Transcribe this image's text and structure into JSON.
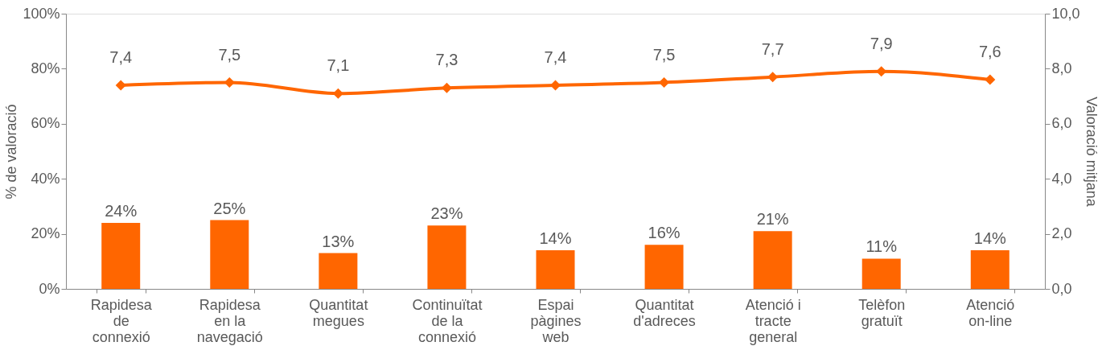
{
  "chart_data": {
    "type": "bar",
    "categories": [
      "Rapidesa de connexió",
      "Rapidesa en la navegació",
      "Quantitat megues",
      "Continuïtat de la connexió",
      "Espai pàgines web",
      "Quantitat d'adreces",
      "Atenció i tracte general",
      "Telèfon gratuït",
      "Atenció on-line"
    ],
    "ylabel": "% de valoració",
    "y2label": "Valoració mitjana",
    "ylim": [
      0,
      100
    ],
    "yticks": [
      {
        "value": 0,
        "label": "0%"
      },
      {
        "value": 20,
        "label": "20%"
      },
      {
        "value": 40,
        "label": "40%"
      },
      {
        "value": 60,
        "label": "60%"
      },
      {
        "value": 80,
        "label": "80%"
      },
      {
        "value": 100,
        "label": "100%"
      }
    ],
    "y2lim": [
      0,
      10
    ],
    "y2ticks": [
      {
        "value": 0,
        "label": "0,0"
      },
      {
        "value": 2,
        "label": "2,0"
      },
      {
        "value": 4,
        "label": "4,0"
      },
      {
        "value": 6,
        "label": "6,0"
      },
      {
        "value": 8,
        "label": "8,0"
      },
      {
        "value": 10,
        "label": "10,0"
      }
    ],
    "series": [
      {
        "color": "#ff6600",
        "values": [
          24,
          25,
          13,
          23,
          14,
          16,
          21,
          11,
          14
        ],
        "value_labels": [
          "24%",
          "25%",
          "13%",
          "23%",
          "14%",
          "16%",
          "21%",
          "11%",
          "14%"
        ]
      },
      {
        "type": "line",
        "axis": "y2",
        "color": "#ff6600",
        "marker": "diamond",
        "values": [
          7.4,
          7.5,
          7.1,
          7.3,
          7.4,
          7.5,
          7.7,
          7.9,
          7.6
        ],
        "value_labels": [
          "7,4",
          "7,5",
          "7,1",
          "7,3",
          "7,4",
          "7,5",
          "7,7",
          "7,9",
          "7,6"
        ]
      }
    ],
    "grid": false
  }
}
